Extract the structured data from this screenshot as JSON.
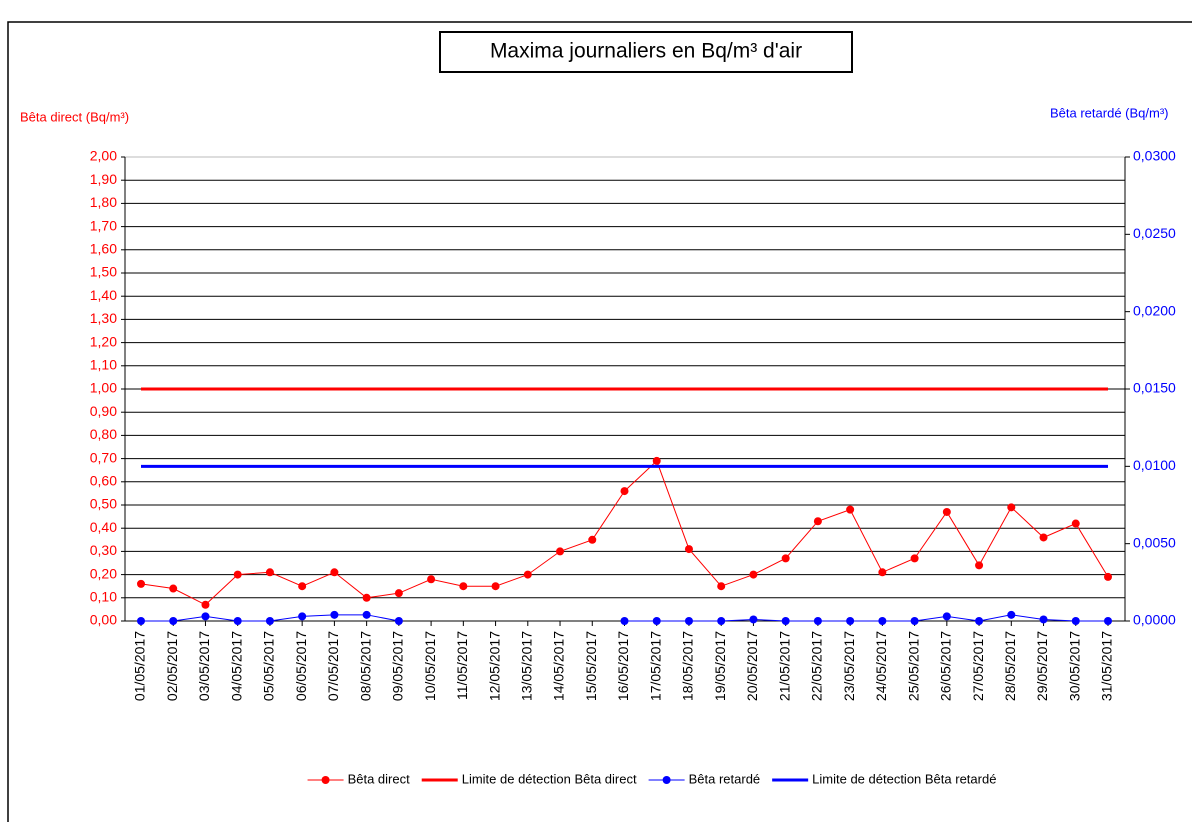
{
  "chart_data": {
    "type": "line",
    "title": "Maxima journaliers en Bq/m³ d'air",
    "y_label": "Bêta direct (Bq/m³)",
    "y2_label": "Bêta retardé (Bq/m³)",
    "categories": [
      "01/05/2017",
      "02/05/2017",
      "03/05/2017",
      "04/05/2017",
      "05/05/2017",
      "06/05/2017",
      "07/05/2017",
      "08/05/2017",
      "09/05/2017",
      "10/05/2017",
      "11/05/2017",
      "12/05/2017",
      "13/05/2017",
      "14/05/2017",
      "15/05/2017",
      "16/05/2017",
      "17/05/2017",
      "18/05/2017",
      "19/05/2017",
      "20/05/2017",
      "21/05/2017",
      "22/05/2017",
      "23/05/2017",
      "24/05/2017",
      "25/05/2017",
      "26/05/2017",
      "27/05/2017",
      "28/05/2017",
      "29/05/2017",
      "30/05/2017",
      "31/05/2017"
    ],
    "series": [
      {
        "name": "Bêta direct",
        "color": "#ff0000",
        "markers": true,
        "line_width": 1,
        "values": [
          0.16,
          0.14,
          0.07,
          0.2,
          0.21,
          0.15,
          0.21,
          0.1,
          0.12,
          0.18,
          0.15,
          0.15,
          0.2,
          0.3,
          0.35,
          0.56,
          0.69,
          0.31,
          0.15,
          0.2,
          0.27,
          0.43,
          0.48,
          0.21,
          0.27,
          0.47,
          0.24,
          0.49,
          0.36,
          0.42,
          0.19
        ]
      },
      {
        "name": "Limite de détection Bêta direct",
        "color": "#ff0000",
        "markers": false,
        "line_width": 3,
        "values": [
          1,
          1,
          1,
          1,
          1,
          1,
          1,
          1,
          1,
          1,
          1,
          1,
          1,
          1,
          1,
          1,
          1,
          1,
          1,
          1,
          1,
          1,
          1,
          1,
          1,
          1,
          1,
          1,
          1,
          1,
          1
        ]
      },
      {
        "name": "Bêta retardé",
        "color": "#0000ff",
        "markers": true,
        "line_width": 1,
        "axis": "y2",
        "values": [
          0,
          0,
          0.0003,
          0,
          0,
          0.0003,
          0.0004,
          0.0004,
          0,
          null,
          null,
          null,
          null,
          null,
          null,
          0,
          0,
          0,
          0,
          0.0001,
          0,
          0,
          0,
          0,
          0,
          0.0003,
          0,
          0.0004,
          0.0001,
          0,
          0
        ]
      },
      {
        "name": "Limite de détection Bêta retardé",
        "color": "#0000ff",
        "markers": false,
        "line_width": 3,
        "axis": "y2",
        "values": [
          0.01,
          0.01,
          0.01,
          0.01,
          0.01,
          0.01,
          0.01,
          0.01,
          0.01,
          0.01,
          0.01,
          0.01,
          0.01,
          0.01,
          0.01,
          0.01,
          0.01,
          0.01,
          0.01,
          0.01,
          0.01,
          0.01,
          0.01,
          0.01,
          0.01,
          0.01,
          0.01,
          0.01,
          0.01,
          0.01,
          0.01
        ]
      }
    ],
    "ylim": [
      0,
      2
    ],
    "yticks": [
      {
        "value": 0,
        "label": "0,00"
      },
      {
        "value": 0.1,
        "label": "0,10"
      },
      {
        "value": 0.2,
        "label": "0,20"
      },
      {
        "value": 0.3,
        "label": "0,30"
      },
      {
        "value": 0.4,
        "label": "0,40"
      },
      {
        "value": 0.5,
        "label": "0,50"
      },
      {
        "value": 0.6,
        "label": "0,60"
      },
      {
        "value": 0.7,
        "label": "0,70"
      },
      {
        "value": 0.8,
        "label": "0,80"
      },
      {
        "value": 0.9,
        "label": "0,90"
      },
      {
        "value": 1,
        "label": "1,00"
      },
      {
        "value": 1.1,
        "label": "1,10"
      },
      {
        "value": 1.2,
        "label": "1,20"
      },
      {
        "value": 1.3,
        "label": "1,30"
      },
      {
        "value": 1.4,
        "label": "1,40"
      },
      {
        "value": 1.5,
        "label": "1,50"
      },
      {
        "value": 1.6,
        "label": "1,60"
      },
      {
        "value": 1.7,
        "label": "1,70"
      },
      {
        "value": 1.8,
        "label": "1,80"
      },
      {
        "value": 1.9,
        "label": "1,90"
      },
      {
        "value": 2,
        "label": "2,00"
      }
    ],
    "y2lim": [
      0,
      0.03
    ],
    "y2ticks": [
      {
        "value": 0,
        "label": "0,0000"
      },
      {
        "value": 0.005,
        "label": "0,0050"
      },
      {
        "value": 0.01,
        "label": "0,0100"
      },
      {
        "value": 0.015,
        "label": "0,0150"
      },
      {
        "value": 0.02,
        "label": "0,0200"
      },
      {
        "value": 0.025,
        "label": "0,0250"
      },
      {
        "value": 0.03,
        "label": "0,0300"
      }
    ],
    "grid": true,
    "legend": "bottom"
  }
}
